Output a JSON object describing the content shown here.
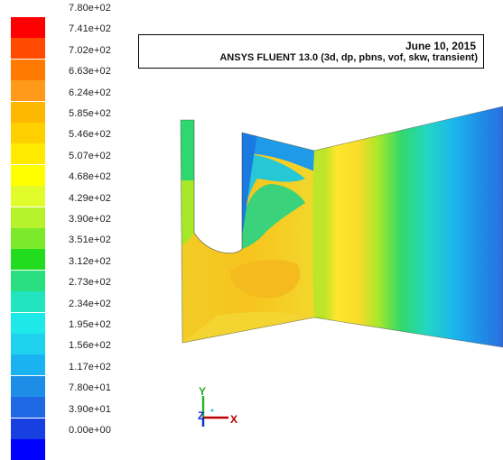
{
  "colorbar": {
    "labels": [
      "7.80e+02",
      "7.41e+02",
      "7.02e+02",
      "6.63e+02",
      "6.24e+02",
      "5.85e+02",
      "5.46e+02",
      "5.07e+02",
      "4.68e+02",
      "4.29e+02",
      "3.90e+02",
      "3.51e+02",
      "3.12e+02",
      "2.73e+02",
      "2.34e+02",
      "1.95e+02",
      "1.56e+02",
      "1.17e+02",
      "7.80e+01",
      "3.90e+01",
      "0.00e+00"
    ],
    "colors": [
      "#ff0000",
      "#ff4a00",
      "#ff7a00",
      "#ff9a1a",
      "#ffb800",
      "#ffd000",
      "#ffea00",
      "#ffff00",
      "#e2fb2a",
      "#b6f22c",
      "#7cea2a",
      "#22dd1f",
      "#2adf80",
      "#22e5c0",
      "#1ee8e8",
      "#1ed2ee",
      "#1ab2f0",
      "#1c8ee8",
      "#1e68e4",
      "#1840e0",
      "#0000ff"
    ]
  },
  "info": {
    "date": "June 10, 2015",
    "solver": "ANSYS FLUENT 13.0 (3d, dp, pbns, vof, skw, transient)"
  },
  "triad": {
    "x": "X",
    "y": "Y",
    "z": "Z"
  }
}
